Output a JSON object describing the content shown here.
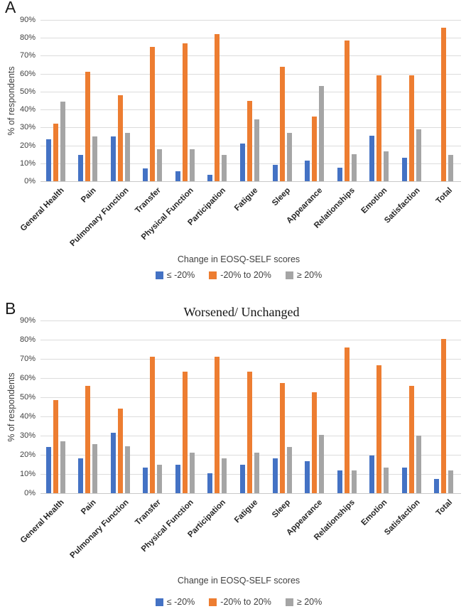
{
  "colors": {
    "blue": "#4472C4",
    "orange": "#ED7D31",
    "gray": "#A5A5A5",
    "gridline": "#DCDCDC",
    "axis": "#C9C9C9"
  },
  "chart_data": [
    {
      "panel": "A",
      "type": "bar",
      "title": "",
      "ylabel": "% of respondents",
      "xlabel": "",
      "ylim": [
        0,
        90
      ],
      "ytick_step": 10,
      "ytick_format": "percent",
      "grid": true,
      "legend_position": "bottom",
      "legend_title": "Change in EOSQ-SELF scores",
      "categories": [
        "General Health",
        "Pain",
        "Pulmonary Function",
        "Transfer",
        "Physical Function",
        "Participation",
        "Fatigue",
        "Sleep",
        "Appearance",
        "Relationships",
        "Emotion",
        "Satisfaction",
        "Total"
      ],
      "series": [
        {
          "name": "≤ -20%",
          "color": "#4472C4",
          "values": [
            23.5,
            14.5,
            25,
            7,
            5.5,
            3.5,
            21,
            9,
            11.5,
            7.5,
            25.5,
            13,
            0
          ]
        },
        {
          "name": "-20% to 20%",
          "color": "#ED7D31",
          "values": [
            32,
            61,
            48,
            75,
            77,
            82,
            45,
            64,
            36,
            78.5,
            59,
            59,
            85.5
          ]
        },
        {
          "name": "≥ 20%",
          "color": "#A5A5A5",
          "values": [
            44.5,
            25,
            27,
            18,
            18,
            14.5,
            34.5,
            27,
            53,
            15,
            16.5,
            29,
            14.5
          ]
        }
      ]
    },
    {
      "panel": "B",
      "type": "bar",
      "title": "Worsened/ Unchanged",
      "ylabel": "% of respondents",
      "xlabel": "",
      "ylim": [
        0,
        90
      ],
      "ytick_step": 10,
      "ytick_format": "percent",
      "grid": true,
      "legend_position": "bottom",
      "legend_title": "Change in EOSQ-SELF scores",
      "categories": [
        "General Health",
        "Pain",
        "Pulmonary Function",
        "Transfer",
        "Physical Function",
        "Participation",
        "Fatigue",
        "Sleep",
        "Appearance",
        "Relationships",
        "Emotion",
        "Satisfaction",
        "Total"
      ],
      "series": [
        {
          "name": "≤ -20%",
          "color": "#4472C4",
          "values": [
            24,
            18,
            31.5,
            13.5,
            15,
            10.5,
            15,
            18,
            16.5,
            12,
            19.5,
            13.5,
            7.5
          ]
        },
        {
          "name": "-20% to 20%",
          "color": "#ED7D31",
          "values": [
            48.5,
            56,
            44,
            71,
            63.5,
            71,
            63.5,
            57.5,
            52.5,
            76,
            66.5,
            56,
            80.5
          ]
        },
        {
          "name": "≥ 20%",
          "color": "#A5A5A5",
          "values": [
            27,
            25.5,
            24.5,
            15,
            21,
            18,
            21,
            24,
            30.5,
            12,
            13.5,
            30,
            12
          ]
        }
      ]
    }
  ]
}
